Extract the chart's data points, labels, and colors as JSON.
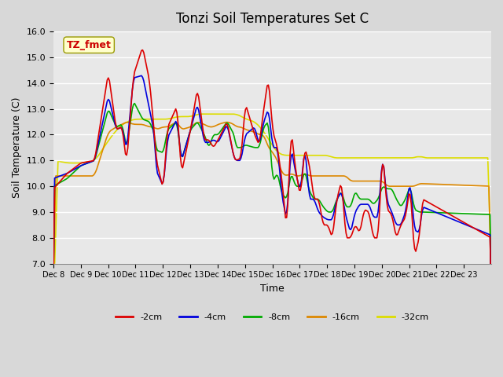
{
  "title": "Tonzi Soil Temperatures Set C",
  "xlabel": "Time",
  "ylabel": "Soil Temperature (C)",
  "ylim": [
    7.0,
    16.0
  ],
  "yticks": [
    7.0,
    8.0,
    9.0,
    10.0,
    11.0,
    12.0,
    13.0,
    14.0,
    15.0,
    16.0
  ],
  "xtick_labels": [
    "Dec 8",
    "Dec 9",
    "Dec 10",
    "Dec 11",
    "Dec 12",
    "Dec 13",
    "Dec 14",
    "Dec 15",
    "Dec 16",
    "Dec 17",
    "Dec 18",
    "Dec 19",
    "Dec 20",
    "Dec 21",
    "Dec 22",
    "Dec 23"
  ],
  "legend_labels": [
    "-2cm",
    "-4cm",
    "-8cm",
    "-16cm",
    "-32cm"
  ],
  "legend_colors": [
    "#dd0000",
    "#0000dd",
    "#00aa00",
    "#dd8800",
    "#dddd00"
  ],
  "bg_color": "#e8e8e8",
  "plot_bg_color": "#e8e8e8",
  "annotation_text": "TZ_fmet",
  "annotation_color": "#cc0000",
  "annotation_bg": "#ffffcc",
  "annotation_border": "#999900"
}
